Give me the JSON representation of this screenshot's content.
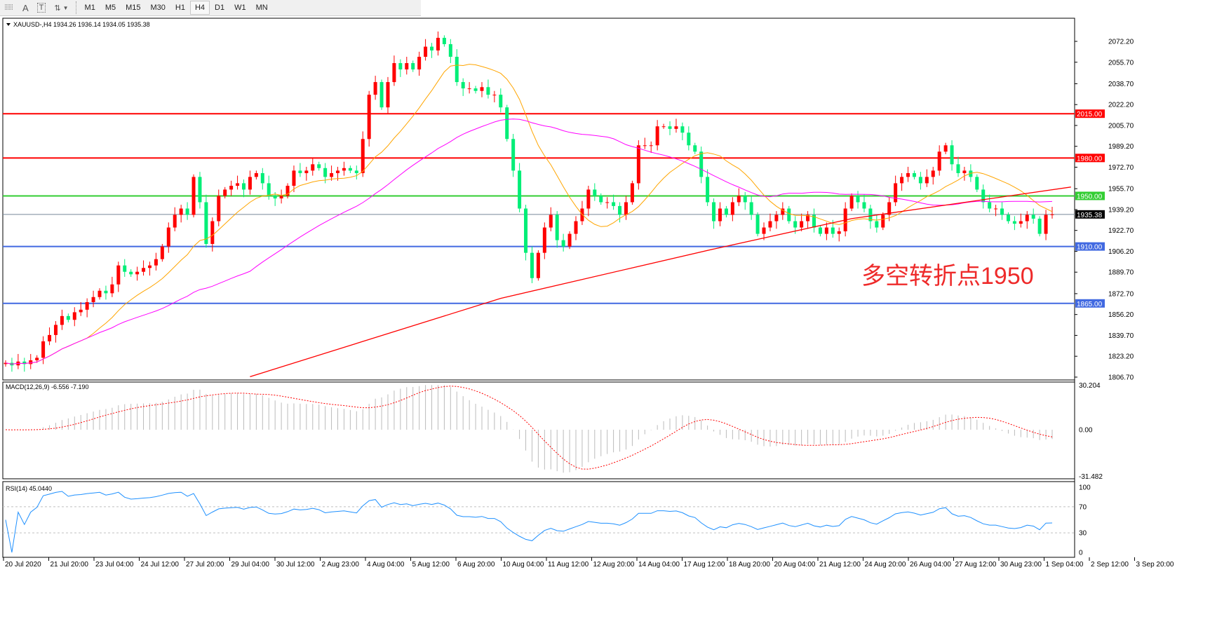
{
  "toolbar": {
    "icons": [
      "period-separator-icon",
      "text-icon",
      "text-label-icon",
      "arrows-icon"
    ],
    "text_icon_glyph": "A",
    "label_icon_glyph": "T",
    "periods": [
      "M1",
      "M5",
      "M15",
      "M30",
      "H1",
      "H4",
      "D1",
      "W1",
      "MN"
    ],
    "active_period": "H4"
  },
  "main_panel": {
    "title": "XAUUSD-,H4  1934.26 1936.14 1934.05 1935.38",
    "annotation": "多空转折点1950",
    "annotation_color": "#ee2a2a"
  },
  "macd_panel": {
    "title": "MACD(12,26,9) -6.556 -7.190",
    "axis_labels": [
      "30.204",
      "0.00",
      "-31.482"
    ]
  },
  "rsi_panel": {
    "title": "RSI(14) 45.0440",
    "axis_labels": [
      "100",
      "70",
      "30",
      "0"
    ]
  },
  "colors": {
    "bull": "#ff0000",
    "bear": "#00ee77",
    "ma_fast": "#ffa500",
    "ma_mid": "#ff00ff",
    "ma_slow": "#ff0000",
    "rsi": "#1e90ff",
    "macd_signal": "#ff0000",
    "macd_hist": "#bbbbbb"
  },
  "chart_data": {
    "type": "candlestick",
    "symbol": "XAUUSD-",
    "timeframe": "H4",
    "ylim": [
      1806.7,
      2072.2
    ],
    "y_tick_labels": [
      "2072.20",
      "2055.70",
      "2038.70",
      "2022.20",
      "2005.70",
      "1989.20",
      "1972.70",
      "1955.70",
      "1939.20",
      "1922.70",
      "1906.20",
      "1889.70",
      "1872.70",
      "1856.20",
      "1839.70",
      "1823.20",
      "1806.70"
    ],
    "x_tick_labels": [
      "20 Jul 2020",
      "21 Jul 20:00",
      "23 Jul 04:00",
      "24 Jul 12:00",
      "27 Jul 20:00",
      "29 Jul 04:00",
      "30 Jul 12:00",
      "2 Aug 23:00",
      "4 Aug 04:00",
      "5 Aug 12:00",
      "6 Aug 20:00",
      "10 Aug 04:00",
      "11 Aug 12:00",
      "12 Aug 20:00",
      "14 Aug 04:00",
      "17 Aug 12:00",
      "18 Aug 20:00",
      "20 Aug 04:00",
      "21 Aug 12:00",
      "24 Aug 20:00",
      "26 Aug 04:00",
      "27 Aug 12:00",
      "30 Aug 23:00",
      "1 Sep 04:00",
      "2 Sep 12:00",
      "3 Sep 20:00"
    ],
    "closes": [
      1818,
      1816,
      1819,
      1817,
      1820,
      1822,
      1835,
      1840,
      1848,
      1855,
      1852,
      1858,
      1860,
      1866,
      1870,
      1875,
      1873,
      1880,
      1895,
      1890,
      1888,
      1890,
      1893,
      1895,
      1900,
      1910,
      1925,
      1935,
      1940,
      1935,
      1965,
      1945,
      1912,
      1930,
      1950,
      1955,
      1958,
      1960,
      1955,
      1965,
      1968,
      1960,
      1950,
      1948,
      1950,
      1958,
      1970,
      1968,
      1970,
      1975,
      1972,
      1965,
      1968,
      1970,
      1972,
      1970,
      1968,
      1995,
      2030,
      2040,
      2020,
      2040,
      2055,
      2050,
      2055,
      2050,
      2060,
      2068,
      2065,
      2075,
      2070,
      2060,
      2040,
      2035,
      2035,
      2033,
      2036,
      2030,
      2030,
      2020,
      1995,
      1970,
      1940,
      1905,
      1885,
      1905,
      1925,
      1935,
      1915,
      1910,
      1920,
      1930,
      1940,
      1955,
      1950,
      1945,
      1945,
      1942,
      1935,
      1945,
      1960,
      1990,
      1990,
      1990,
      2005,
      2005,
      2003,
      2005,
      2000,
      1990,
      1985,
      1965,
      1945,
      1930,
      1940,
      1935,
      1945,
      1950,
      1945,
      1935,
      1920,
      1925,
      1930,
      1935,
      1940,
      1930,
      1925,
      1930,
      1935,
      1925,
      1920,
      1925,
      1920,
      1922,
      1940,
      1950,
      1945,
      1940,
      1930,
      1925,
      1935,
      1945,
      1960,
      1965,
      1968,
      1965,
      1960,
      1965,
      1970,
      1985,
      1990,
      1975,
      1968,
      1970,
      1965,
      1955,
      1945,
      1940,
      1940,
      1935,
      1930,
      1928,
      1930,
      1935,
      1932,
      1920,
      1935,
      1935.38
    ],
    "slow_ma_points": [
      {
        "bar": 39,
        "value": 1807
      },
      {
        "bar": 79,
        "value": 1869
      },
      {
        "bar": 113,
        "value": 1908
      },
      {
        "bar": 135,
        "value": 1932
      },
      {
        "bar": 170,
        "value": 1957
      }
    ],
    "levels": [
      {
        "value": 2015.0,
        "label": "2015.00",
        "color": "#ff0000"
      },
      {
        "value": 1980.0,
        "label": "1980.00",
        "color": "#ff0000"
      },
      {
        "value": 1950.0,
        "label": "1950.00",
        "color": "#32cd32"
      },
      {
        "value": 1910.0,
        "label": "1910.00",
        "color": "#4169e1"
      },
      {
        "value": 1865.0,
        "label": "1865.00",
        "color": "#4169e1"
      }
    ],
    "current_price": {
      "value": 1935.38,
      "label": "1935.38"
    },
    "macd_range": [
      -31.482,
      30.204
    ],
    "rsi_levels": [
      30,
      70
    ],
    "grid": false
  }
}
